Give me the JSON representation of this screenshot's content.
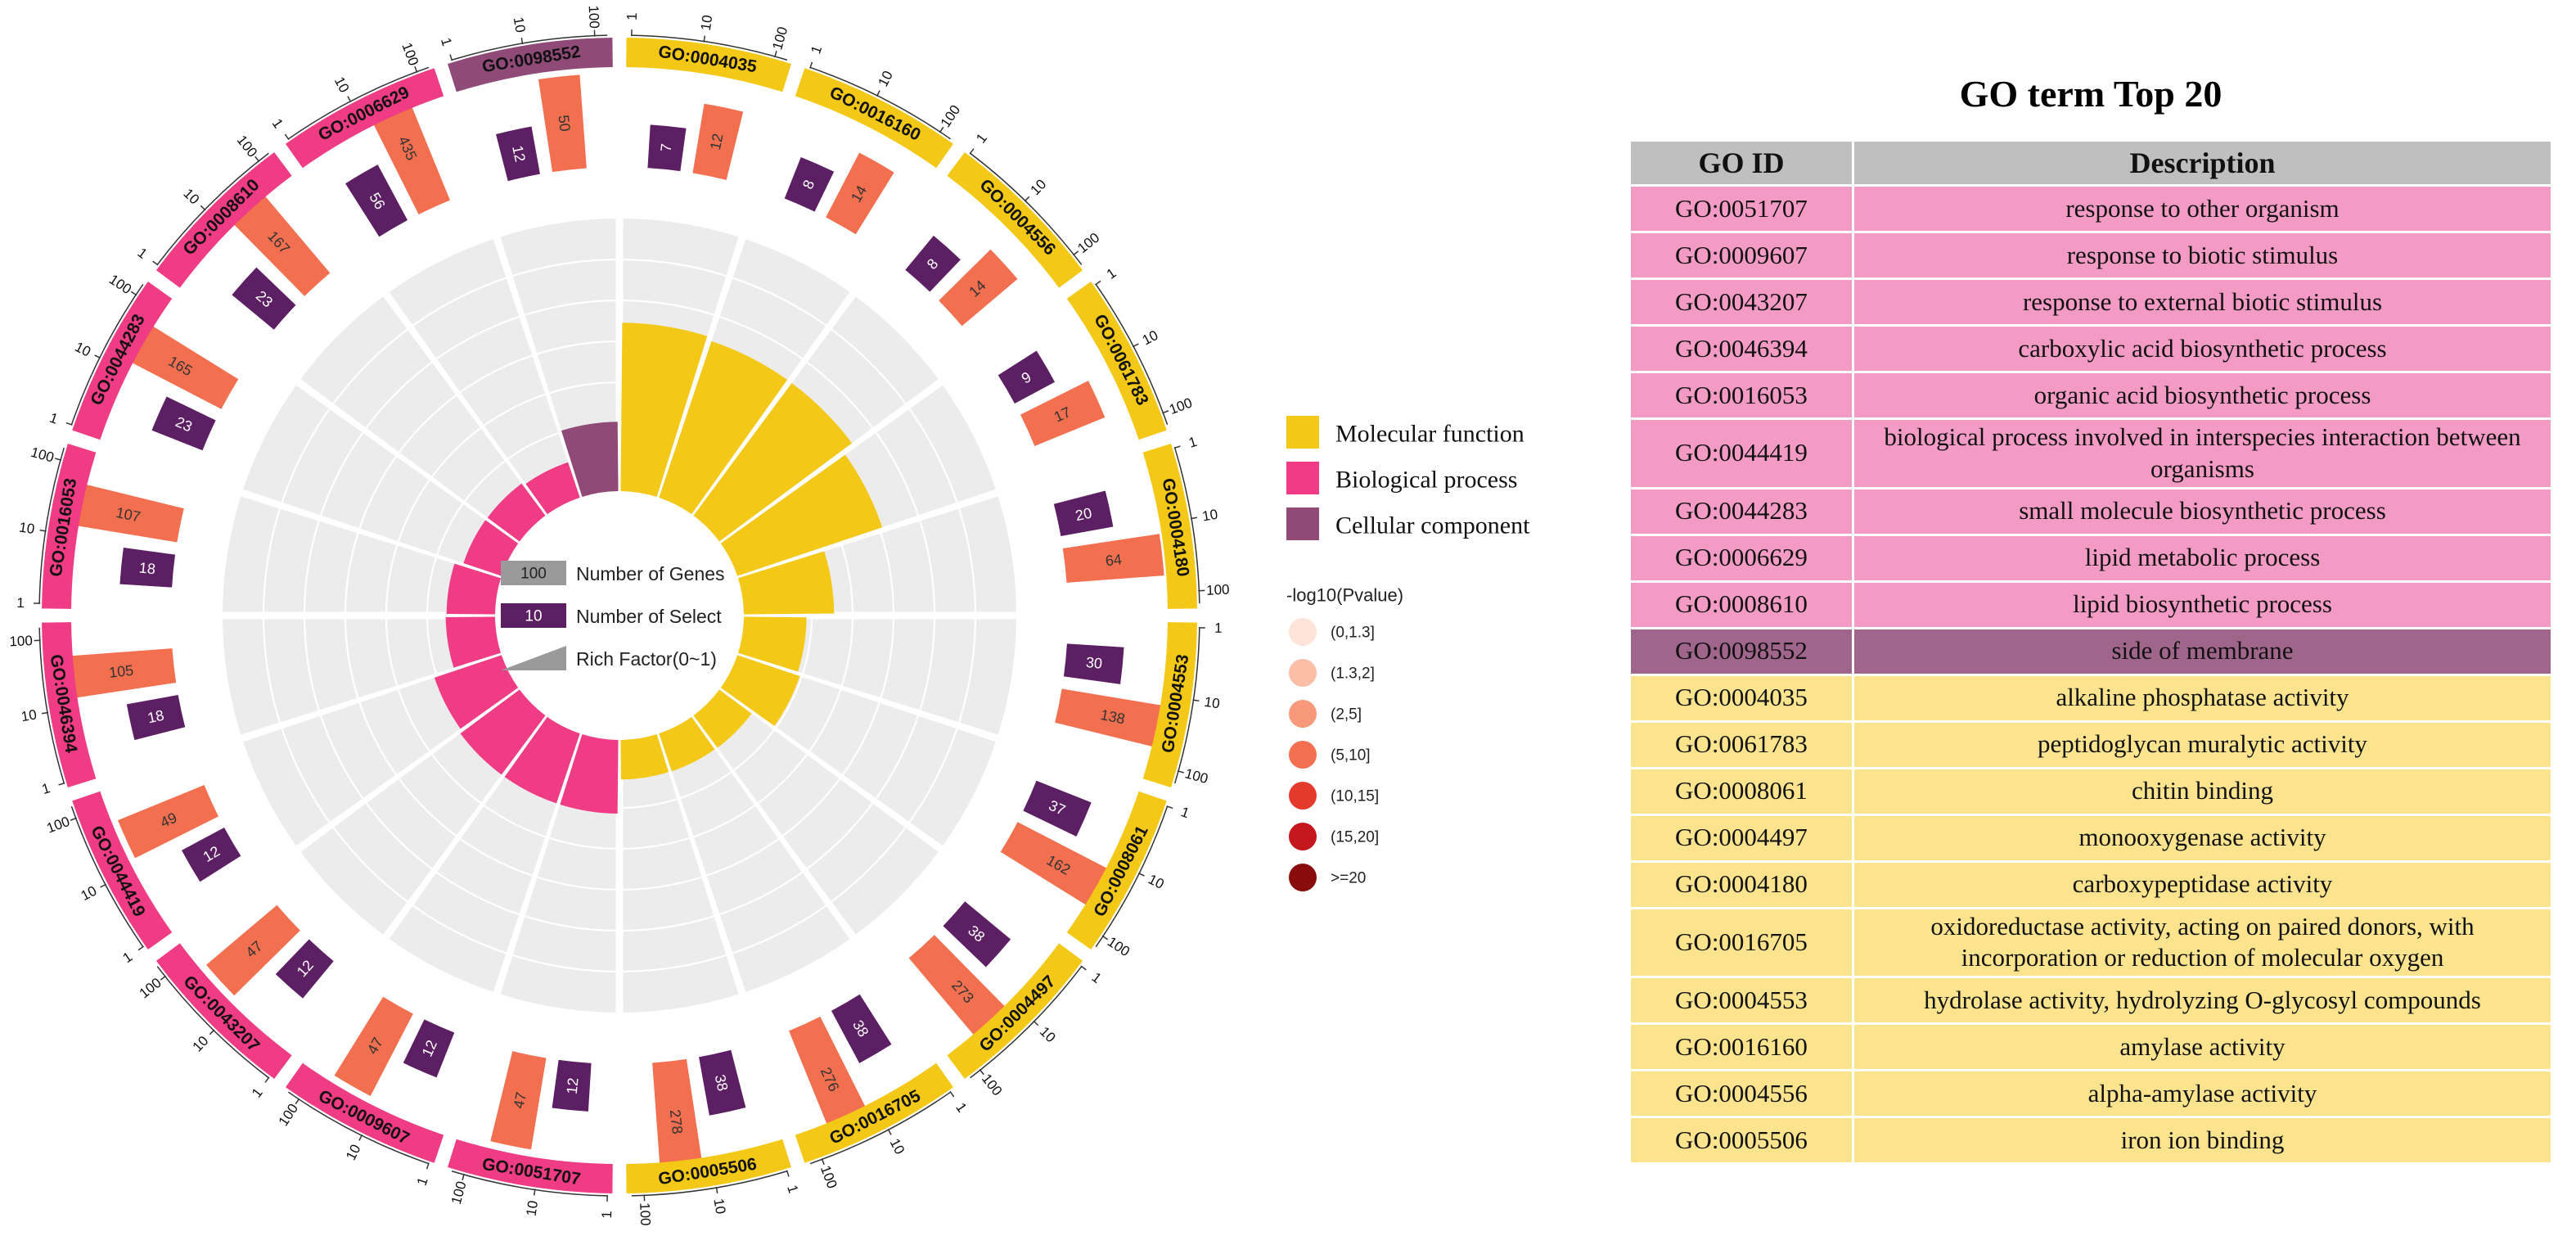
{
  "chart_data": {
    "type": "circular-go-enrichment",
    "terms": [
      {
        "id": "GO:0004035",
        "category": "MF",
        "genes": 12,
        "select": 7,
        "rich": 0.583,
        "pvalue_bin": "(5,10]"
      },
      {
        "id": "GO:0016160",
        "category": "MF",
        "genes": 14,
        "select": 8,
        "rich": 0.571,
        "pvalue_bin": "(5,10]"
      },
      {
        "id": "GO:0004556",
        "category": "MF",
        "genes": 14,
        "select": 8,
        "rich": 0.571,
        "pvalue_bin": "(5,10]"
      },
      {
        "id": "GO:0061783",
        "category": "MF",
        "genes": 17,
        "select": 9,
        "rich": 0.529,
        "pvalue_bin": "(5,10]"
      },
      {
        "id": "GO:0004180",
        "category": "MF",
        "genes": 64,
        "select": 20,
        "rich": 0.3125,
        "pvalue_bin": "(5,10]"
      },
      {
        "id": "GO:0004553",
        "category": "MF",
        "genes": 138,
        "select": 30,
        "rich": 0.217,
        "pvalue_bin": "(5,10]"
      },
      {
        "id": "GO:0008061",
        "category": "MF",
        "genes": 162,
        "select": 37,
        "rich": 0.228,
        "pvalue_bin": "(5,10]"
      },
      {
        "id": "GO:0004497",
        "category": "MF",
        "genes": 273,
        "select": 38,
        "rich": 0.139,
        "pvalue_bin": "(5,10]"
      },
      {
        "id": "GO:0016705",
        "category": "MF",
        "genes": 276,
        "select": 38,
        "rich": 0.138,
        "pvalue_bin": "(5,10]"
      },
      {
        "id": "GO:0005506",
        "category": "MF",
        "genes": 278,
        "select": 38,
        "rich": 0.137,
        "pvalue_bin": "(5,10]"
      },
      {
        "id": "GO:0051707",
        "category": "BP",
        "genes": 47,
        "select": 12,
        "rich": 0.255,
        "pvalue_bin": "(5,10]"
      },
      {
        "id": "GO:0009607",
        "category": "BP",
        "genes": 47,
        "select": 12,
        "rich": 0.255,
        "pvalue_bin": "(5,10]"
      },
      {
        "id": "GO:0043207",
        "category": "BP",
        "genes": 47,
        "select": 12,
        "rich": 0.255,
        "pvalue_bin": "(5,10]"
      },
      {
        "id": "GO:0044419",
        "category": "BP",
        "genes": 49,
        "select": 12,
        "rich": 0.245,
        "pvalue_bin": "(5,10]"
      },
      {
        "id": "GO:0046394",
        "category": "BP",
        "genes": 105,
        "select": 18,
        "rich": 0.171,
        "pvalue_bin": "(5,10]"
      },
      {
        "id": "GO:0016053",
        "category": "BP",
        "genes": 107,
        "select": 18,
        "rich": 0.168,
        "pvalue_bin": "(5,10]"
      },
      {
        "id": "GO:0044283",
        "category": "BP",
        "genes": 165,
        "select": 23,
        "rich": 0.139,
        "pvalue_bin": "(5,10]"
      },
      {
        "id": "GO:0008610",
        "category": "BP",
        "genes": 167,
        "select": 23,
        "rich": 0.138,
        "pvalue_bin": "(5,10]"
      },
      {
        "id": "GO:0006629",
        "category": "BP",
        "genes": 435,
        "select": 56,
        "rich": 0.129,
        "pvalue_bin": "(5,10]"
      },
      {
        "id": "GO:0098552",
        "category": "CC",
        "genes": 50,
        "select": 12,
        "rich": 0.24,
        "pvalue_bin": "(5,10]"
      }
    ],
    "scale_ticks": [
      "1",
      "10",
      "100"
    ],
    "center_legend": [
      {
        "label": "Number of Genes",
        "sample": "100"
      },
      {
        "label": "Number of Select",
        "sample": "10"
      },
      {
        "label": "Rich Factor(0~1)",
        "sample": ""
      }
    ],
    "category_legend": [
      {
        "key": "MF",
        "label": "Molecular function",
        "color": "#f4c816"
      },
      {
        "key": "BP",
        "label": "Biological process",
        "color": "#f03b85"
      },
      {
        "key": "CC",
        "label": "Cellular component",
        "color": "#8f4a77"
      }
    ],
    "pvalue_legend": {
      "title": "-log10(Pvalue)",
      "items": [
        {
          "label": "(0,1.3]",
          "color": "#fde3da"
        },
        {
          "label": "(1.3,2]",
          "color": "#fbbfa7"
        },
        {
          "label": "(2,5]",
          "color": "#f79a79"
        },
        {
          "label": "(5,10]",
          "color": "#f26f4f"
        },
        {
          "label": "(10,15]",
          "color": "#e43a2e"
        },
        {
          "label": "(15,20]",
          "color": "#c3161d"
        },
        {
          "label": ">=20",
          "color": "#8a0b0b"
        }
      ]
    },
    "select_color": "#5c1f63",
    "ring_bg_color": "#ececec"
  },
  "table": {
    "title": "GO term Top 20",
    "headers": {
      "id": "GO ID",
      "description": "Description"
    },
    "rows": [
      {
        "id": "GO:0051707",
        "description": "response to other organism",
        "category": "BP"
      },
      {
        "id": "GO:0009607",
        "description": "response to biotic stimulus",
        "category": "BP"
      },
      {
        "id": "GO:0043207",
        "description": "response to external biotic stimulus",
        "category": "BP"
      },
      {
        "id": "GO:0046394",
        "description": "carboxylic acid biosynthetic process",
        "category": "BP"
      },
      {
        "id": "GO:0016053",
        "description": "organic acid biosynthetic process",
        "category": "BP"
      },
      {
        "id": "GO:0044419",
        "description": "biological process involved in interspecies interaction between organisms",
        "category": "BP"
      },
      {
        "id": "GO:0044283",
        "description": "small molecule biosynthetic process",
        "category": "BP"
      },
      {
        "id": "GO:0006629",
        "description": "lipid metabolic process",
        "category": "BP"
      },
      {
        "id": "GO:0008610",
        "description": "lipid biosynthetic process",
        "category": "BP"
      },
      {
        "id": "GO:0098552",
        "description": "side of membrane",
        "category": "CC"
      },
      {
        "id": "GO:0004035",
        "description": "alkaline phosphatase activity",
        "category": "MF"
      },
      {
        "id": "GO:0061783",
        "description": "peptidoglycan muralytic activity",
        "category": "MF"
      },
      {
        "id": "GO:0008061",
        "description": "chitin binding",
        "category": "MF"
      },
      {
        "id": "GO:0004497",
        "description": "monooxygenase activity",
        "category": "MF"
      },
      {
        "id": "GO:0004180",
        "description": "carboxypeptidase activity",
        "category": "MF"
      },
      {
        "id": "GO:0016705",
        "description": "oxidoreductase activity, acting on paired donors, with incorporation or reduction of molecular oxygen",
        "category": "MF"
      },
      {
        "id": "GO:0004553",
        "description": "hydrolase activity, hydrolyzing O-glycosyl compounds",
        "category": "MF"
      },
      {
        "id": "GO:0016160",
        "description": "amylase activity",
        "category": "MF"
      },
      {
        "id": "GO:0004556",
        "description": "alpha-amylase activity",
        "category": "MF"
      },
      {
        "id": "GO:0005506",
        "description": "iron ion binding",
        "category": "MF"
      }
    ]
  }
}
